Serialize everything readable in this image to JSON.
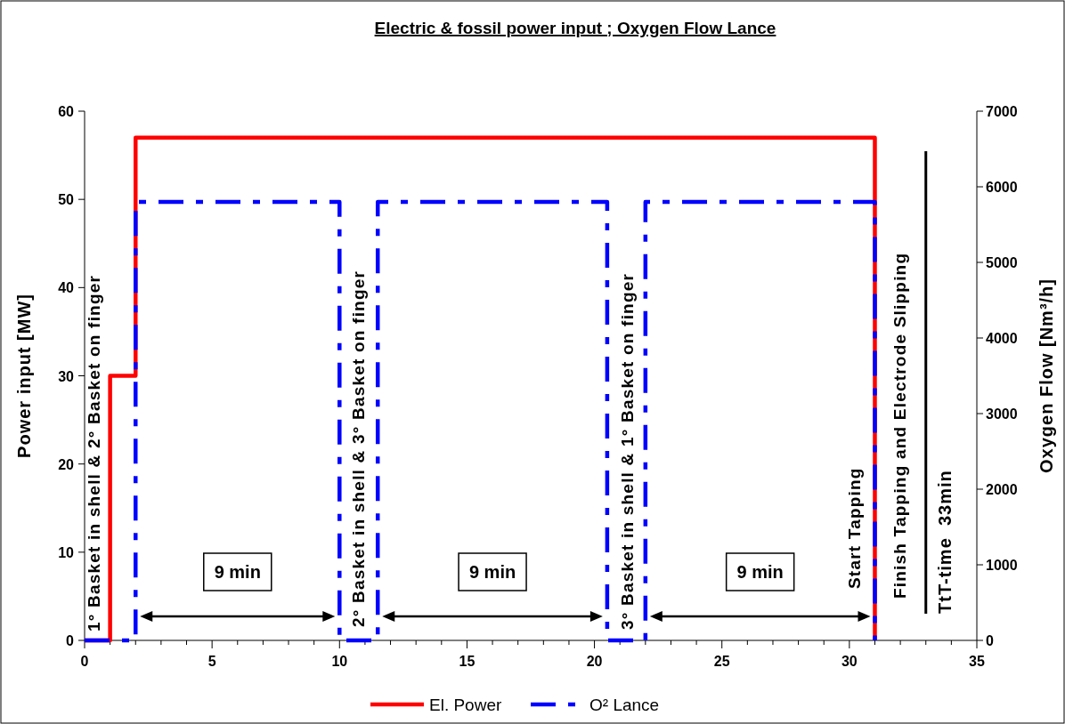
{
  "chart_data": {
    "type": "line",
    "title": "Electric & fossil power input ; Oxygen Flow Lance",
    "ylabel": "Power input [MW]",
    "y2label": "Oxygen Flow [Nm³/h]",
    "xlim": [
      0,
      35
    ],
    "xticks": [
      0,
      {
        "value": 1,
        "label": null
      },
      {
        "value": 2,
        "label": null
      },
      {
        "value": 3,
        "label": null
      },
      {
        "value": 4,
        "label": null
      },
      5,
      {
        "value": 6,
        "label": null
      },
      {
        "value": 7,
        "label": null
      },
      {
        "value": 8,
        "label": null
      },
      {
        "value": 9,
        "label": null
      },
      10,
      {
        "value": 11,
        "label": null
      },
      {
        "value": 12,
        "label": null
      },
      {
        "value": 13,
        "label": null
      },
      {
        "value": 14,
        "label": null
      },
      15,
      {
        "value": 16,
        "label": null
      },
      {
        "value": 17,
        "label": null
      },
      {
        "value": 18,
        "label": null
      },
      {
        "value": 19,
        "label": null
      },
      20,
      {
        "value": 21,
        "label": null
      },
      {
        "value": 22,
        "label": null
      },
      {
        "value": 23,
        "label": null
      },
      {
        "value": 24,
        "label": null
      },
      25,
      {
        "value": 26,
        "label": null
      },
      {
        "value": 27,
        "label": null
      },
      {
        "value": 28,
        "label": null
      },
      {
        "value": 29,
        "label": null
      },
      30,
      {
        "value": 31,
        "label": null
      },
      {
        "value": 32,
        "label": null
      },
      {
        "value": 33,
        "label": null
      },
      {
        "value": 34,
        "label": null
      },
      35
    ],
    "ylim": [
      0,
      60
    ],
    "yticks": [
      0,
      10,
      20,
      30,
      40,
      50,
      60
    ],
    "y2lim": [
      0,
      7000
    ],
    "y2ticks": [
      0,
      1000,
      2000,
      3000,
      4000,
      5000,
      6000,
      7000
    ],
    "series": [
      {
        "name": "El. Power",
        "color": "#ff0000",
        "line_style": "solid",
        "x": [
          0,
          1,
          1,
          2,
          2,
          31,
          31
        ],
        "values": [
          0,
          0,
          30,
          30,
          57,
          57,
          0
        ]
      },
      {
        "name": "O² Lance",
        "color": "#0000ff",
        "line_style": "dashed",
        "axis": "y2",
        "x": [
          0,
          2,
          2,
          10,
          10,
          11.5,
          11.5,
          20.5,
          20.5,
          22,
          22,
          31,
          31
        ],
        "values": [
          0,
          0,
          5800,
          5800,
          0,
          0,
          5800,
          5800,
          0,
          0,
          5800,
          5800,
          0
        ]
      }
    ],
    "ref_lines": [
      {
        "axis": "x",
        "value": 33,
        "label": "TtT-time  33min",
        "color": "#000000"
      }
    ],
    "annotations": [
      "1° Basket in shell & 2° Basket on finger",
      "2° Basket in shell & 3° Basket on finger",
      "3° Basket in shell & 1° Basket on finger",
      "Start Tapping",
      "Finish Tapping and Electrode Slipping",
      "9 min",
      "9 min",
      "9 min"
    ],
    "legend": "bottom",
    "grid": false
  }
}
